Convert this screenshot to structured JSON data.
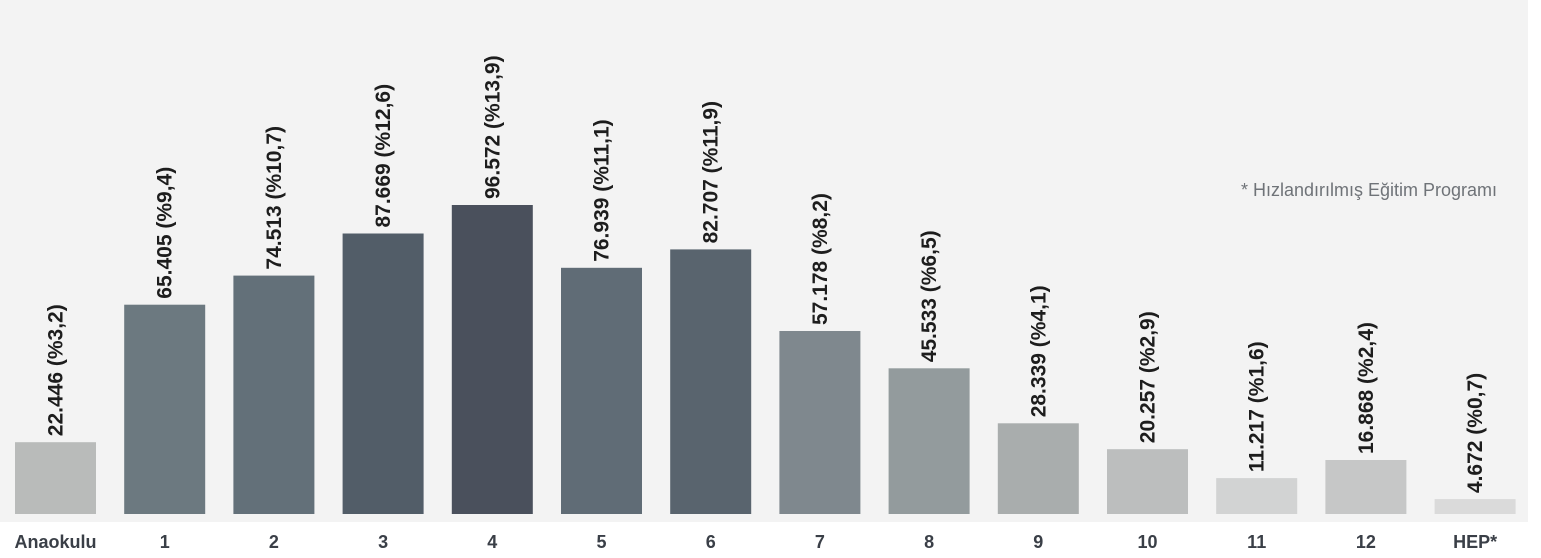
{
  "chart_data": {
    "type": "bar",
    "categories": [
      "Anaokulu",
      "1",
      "2",
      "3",
      "4",
      "5",
      "6",
      "7",
      "8",
      "9",
      "10",
      "11",
      "12",
      "HEP*"
    ],
    "values": [
      22446,
      65405,
      74513,
      87669,
      96572,
      76939,
      82707,
      57178,
      45533,
      28339,
      20257,
      11217,
      16868,
      4672
    ],
    "data_labels": [
      "22.446 (%3,2)",
      "65.405 (%9,4)",
      "74.513 (%10,7)",
      "87.669 (%12,6)",
      "96.572 (%13,9)",
      "76.939 (%11,1)",
      "82.707 (%11,9)",
      "57.178 (%8,2)",
      "45.533 (%6,5)",
      "28.339 (%4,1)",
      "20.257 (%2,9)",
      "11.217 (%1,6)",
      "16.868 (%2,4)",
      "4.672 (%0,7)"
    ],
    "bar_colors": [
      "#b9bbba",
      "#6c7980",
      "#637079",
      "#525d68",
      "#4a505c",
      "#606c76",
      "#59646e",
      "#7f888e",
      "#939b9d",
      "#a9adad",
      "#bcbebe",
      "#d2d3d3",
      "#c6c7c7",
      "#dadada"
    ],
    "title": "",
    "xlabel": "",
    "ylabel": "",
    "ylim": [
      0,
      100000
    ],
    "grid": false,
    "legend": "none",
    "annotations": [
      "* Hızlandırılmış Eğitim Programı"
    ],
    "background": "#f3f3f3"
  }
}
